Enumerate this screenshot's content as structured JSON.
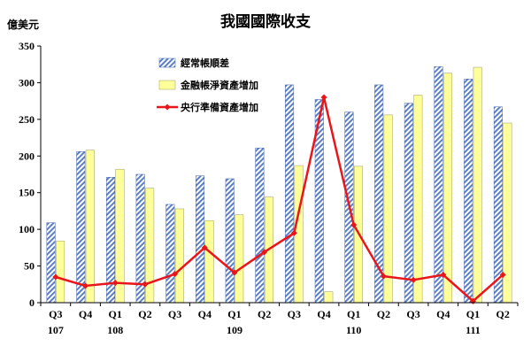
{
  "chart_data": {
    "type": "bar",
    "title": "我國國際收支",
    "ylabel": "億美元",
    "xlabel": "",
    "ylim": [
      0,
      350
    ],
    "yticks": [
      0,
      50,
      100,
      150,
      200,
      250,
      300,
      350
    ],
    "grid": false,
    "legend_position": "top-left",
    "categories": [
      "Q3",
      "Q4",
      "Q1",
      "Q2",
      "Q3",
      "Q4",
      "Q1",
      "Q2",
      "Q3",
      "Q4",
      "Q1",
      "Q2",
      "Q3",
      "Q4",
      "Q1",
      "Q2"
    ],
    "year_labels": [
      {
        "label": "107",
        "category_index": 0
      },
      {
        "label": "108",
        "category_index": 2
      },
      {
        "label": "109",
        "category_index": 6
      },
      {
        "label": "110",
        "category_index": 10
      },
      {
        "label": "111",
        "category_index": 14
      }
    ],
    "series": [
      {
        "name": "經常帳順差",
        "type": "bar",
        "color": "#5b7fc7",
        "values": [
          109,
          206,
          171,
          175,
          134,
          173,
          169,
          211,
          297,
          277,
          260,
          297,
          272,
          322,
          305,
          267
        ]
      },
      {
        "name": "金融帳淨資產增加",
        "type": "bar",
        "color": "#ffff99",
        "values": [
          84,
          208,
          182,
          156,
          128,
          112,
          120,
          144,
          187,
          15,
          186,
          256,
          283,
          313,
          321,
          245
        ]
      },
      {
        "name": "央行準備資產增加",
        "type": "line",
        "color": "#e8161b",
        "values": [
          35,
          23,
          27,
          25,
          39,
          75,
          41,
          69,
          95,
          280,
          106,
          36,
          31,
          38,
          2,
          38
        ]
      }
    ]
  }
}
